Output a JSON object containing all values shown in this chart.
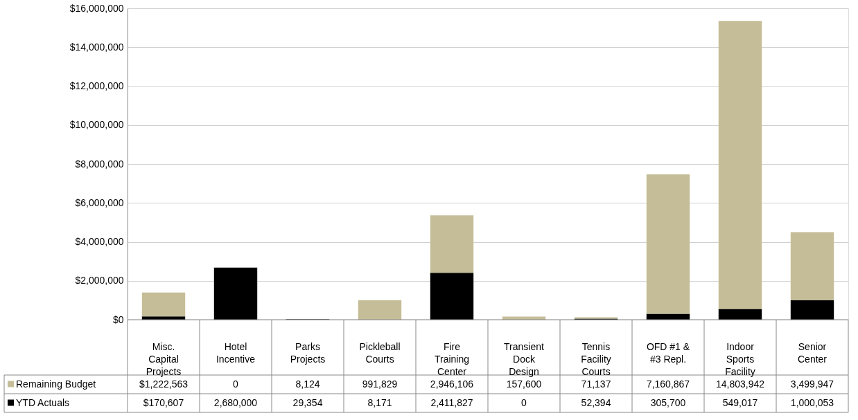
{
  "chart_data": {
    "type": "bar",
    "stacked": true,
    "categories": [
      "Misc. Capital Projects",
      "Hotel Incentive",
      "Parks Projects",
      "Pickleball Courts",
      "Fire Training Center",
      "Transient Dock Design",
      "Tennis Facility Courts",
      "OFD #1 & #3 Repl.",
      "Indoor Sports Facility",
      "Senior Center"
    ],
    "series": [
      {
        "name": "YTD Actuals",
        "color": "#000000",
        "values": [
          170607,
          2680000,
          29354,
          8171,
          2411827,
          0,
          52394,
          305700,
          549017,
          1000053
        ],
        "value_labels": [
          "$170,607",
          "2,680,000",
          "29,354",
          "8,171",
          "2,411,827",
          "0",
          "52,394",
          "305,700",
          "549,017",
          "1,000,053"
        ]
      },
      {
        "name": "Remaining Budget",
        "color": "#c4bd97",
        "values": [
          1222563,
          0,
          8124,
          991829,
          2946106,
          157600,
          71137,
          7160867,
          14803942,
          3499947
        ],
        "value_labels": [
          "$1,222,563",
          "0",
          "8,124",
          "991,829",
          "2,946,106",
          "157,600",
          "71,137",
          "7,160,867",
          "14,803,942",
          "3,499,947"
        ]
      }
    ],
    "ylim": [
      0,
      16000000
    ],
    "yticks": [
      {
        "value": 0,
        "label": "$0"
      },
      {
        "value": 2000000,
        "label": "$2,000,000"
      },
      {
        "value": 4000000,
        "label": "$4,000,000"
      },
      {
        "value": 6000000,
        "label": "$6,000,000"
      },
      {
        "value": 8000000,
        "label": "$8,000,000"
      },
      {
        "value": 10000000,
        "label": "$10,000,000"
      },
      {
        "value": 12000000,
        "label": "$12,000,000"
      },
      {
        "value": 14000000,
        "label": "$14,000,000"
      },
      {
        "value": 16000000,
        "label": "$16,000,000"
      }
    ],
    "grid": "y",
    "legend": "bottom"
  }
}
